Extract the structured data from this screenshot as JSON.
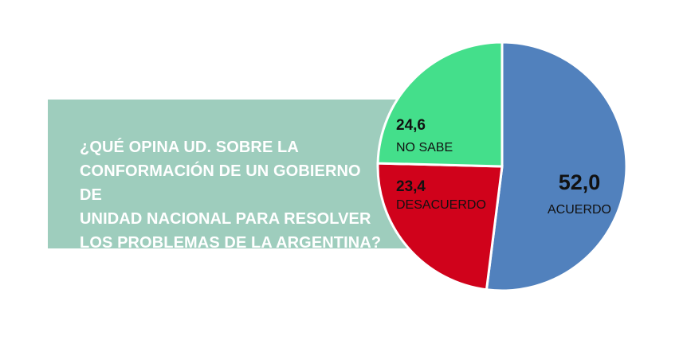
{
  "chart_data": {
    "type": "pie",
    "title": "¿QUÉ OPINA UD. SOBRE LA\nCONFORMACIÓN DE UN GOBIERNO DE\nUNIDAD NACIONAL PARA RESOLVER\nLOS PROBLEMAS DE LA ARGENTINA?",
    "slices": [
      {
        "label": "ACUERDO",
        "value": 52.0,
        "display": "52,0",
        "color": "#5181bd"
      },
      {
        "label": "DESACUERDO",
        "value": 23.4,
        "display": "23,4",
        "color": "#d0021b"
      },
      {
        "label": "NO SABE",
        "value": 24.6,
        "display": "24,6",
        "color": "#44df8b"
      }
    ],
    "start": "top",
    "direction": "clockwise",
    "banner_color": "#9ecdbd"
  }
}
